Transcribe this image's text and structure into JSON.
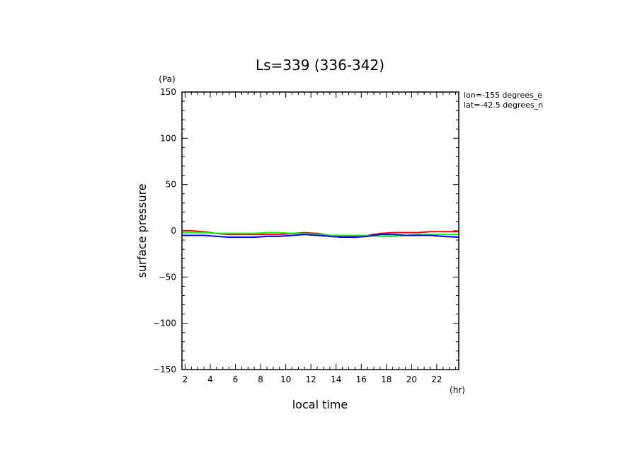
{
  "chart_data": {
    "type": "line",
    "title": "Ls=339 (336-342)",
    "xlabel": "local time",
    "ylabel": "surface pressure",
    "x_unit": "(hr)",
    "y_unit": "(Pa)",
    "xlim": [
      1.75,
      23.75
    ],
    "ylim": [
      -150,
      150
    ],
    "x_ticks": [
      2,
      4,
      6,
      8,
      10,
      12,
      14,
      16,
      18,
      20,
      22
    ],
    "y_ticks": [
      150,
      100,
      50,
      0,
      -50,
      -100,
      -150
    ],
    "x_tick_labels": [
      "2",
      "4",
      "6",
      "8",
      "10",
      "12",
      "14",
      "16",
      "18",
      "20",
      "22"
    ],
    "y_tick_labels": [
      "150",
      "100",
      "50",
      "0",
      "−50",
      "−100",
      "−150"
    ],
    "annotations": [
      "lon=-155 degrees_e",
      "lat=-42.5 degrees_n"
    ],
    "grid": false,
    "series": [
      {
        "color": "#ff0000",
        "x": [
          1.75,
          2.5,
          3.5,
          4.5,
          5.5,
          6.5,
          7.5,
          8.5,
          9.5,
          10.5,
          11.5,
          12.5,
          13.5,
          14.5,
          15.5,
          16.5,
          17.5,
          18.5,
          19.5,
          20.5,
          21.5,
          22.5,
          23.75
        ],
        "y": [
          0,
          0,
          -1,
          -3,
          -4,
          -4,
          -4,
          -4,
          -4,
          -3,
          -2,
          -3,
          -5,
          -6,
          -6,
          -5,
          -3,
          -2,
          -2,
          -2,
          -1,
          -1,
          -1
        ]
      },
      {
        "color": "#00ff00",
        "x": [
          1.75,
          2.5,
          3.5,
          4.5,
          5.5,
          6.5,
          7.5,
          8.5,
          9.5,
          10.5,
          11.5,
          12.5,
          13.5,
          14.5,
          15.5,
          16.5,
          17.5,
          18.5,
          19.5,
          20.5,
          21.5,
          22.5,
          23.75
        ],
        "y": [
          -2,
          -2,
          -2,
          -3,
          -3,
          -3,
          -3,
          -2,
          -2,
          -3,
          -3,
          -4,
          -5,
          -5,
          -5,
          -5,
          -6,
          -6,
          -5,
          -4,
          -4,
          -4,
          -4
        ]
      },
      {
        "color": "#0000ff",
        "x": [
          1.75,
          2.5,
          3.5,
          4.5,
          5.5,
          6.5,
          7.5,
          8.5,
          9.5,
          10.5,
          11.5,
          12.5,
          13.5,
          14.5,
          15.5,
          16.5,
          17.5,
          18.5,
          19.5,
          20.5,
          21.5,
          22.5,
          23.75
        ],
        "y": [
          -5,
          -5,
          -5,
          -6,
          -7,
          -7,
          -7,
          -6,
          -6,
          -5,
          -4,
          -5,
          -6,
          -7,
          -7,
          -6,
          -4,
          -4,
          -5,
          -5,
          -5,
          -6,
          -7
        ]
      }
    ]
  }
}
